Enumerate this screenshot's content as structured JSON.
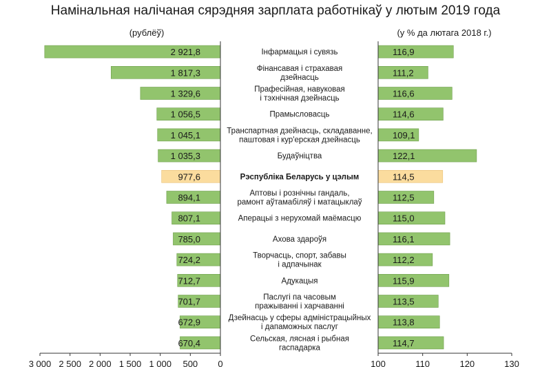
{
  "chart_data": {
    "type": "bar",
    "title": "Намінальная налічаная сярэдняя зарплата работнікаў у лютым 2019 года",
    "left_unit": "(рублёў)",
    "right_unit": "(у % да лютага 2018 г.)",
    "categories": [
      [
        "Інфармацыя і сувязь"
      ],
      [
        "Фінансавая і страхавая",
        "дзейнасць"
      ],
      [
        "Прафесійная, навуковая",
        "і тэхнічная дзейнасць"
      ],
      [
        "Прамысловасць"
      ],
      [
        "Транспартная дзейнасць, складаванне,",
        "паштовая і кур'ерская дзейнасць"
      ],
      [
        "Будаўніцтва"
      ],
      [
        "Рэспубліка Беларусь у цэлым"
      ],
      [
        "Аптовы і рознічны гандаль,",
        "рамонт аўтамабіляў і матацыклаў"
      ],
      [
        "Аперацыі з нерухомай маёмасцю"
      ],
      [
        "Ахова здароўя"
      ],
      [
        "Творчасць, спорт, забавы",
        "і адпачынак"
      ],
      [
        "Адукацыя"
      ],
      [
        "Паслугі па часовым",
        "пражыванні і харчаванні"
      ],
      [
        "Дзейнасць у сферы адміністрацыйных",
        "і дапаможных паслуг"
      ],
      [
        "Сельская, лясная і рыбная",
        "гаспадарка"
      ]
    ],
    "highlight_index": 6,
    "salary": {
      "values": [
        2921.8,
        1817.3,
        1329.6,
        1056.5,
        1045.1,
        1035.3,
        977.6,
        894.1,
        807.1,
        785.0,
        724.2,
        712.7,
        701.7,
        672.9,
        670.4
      ],
      "labels": [
        "2 921,8",
        "1 817,3",
        "1 329,6",
        "1 056,5",
        "1 045,1",
        "1 035,3",
        "977,6",
        "894,1",
        "807,1",
        "785,0",
        "724,2",
        "712,7",
        "701,7",
        "672,9",
        "670,4"
      ],
      "xlim": [
        3000,
        0
      ],
      "ticks": [
        "3 000",
        "2 500",
        "2 000",
        "1 500",
        "1 000",
        "500",
        "0"
      ],
      "tick_values": [
        3000,
        2500,
        2000,
        1500,
        1000,
        500,
        0
      ]
    },
    "index": {
      "values": [
        116.9,
        111.2,
        116.6,
        114.6,
        109.1,
        122.1,
        114.5,
        112.5,
        115.0,
        116.1,
        112.2,
        115.9,
        113.5,
        113.8,
        114.7
      ],
      "labels": [
        "116,9",
        "111,2",
        "116,6",
        "114,6",
        "109,1",
        "122,1",
        "114,5",
        "112,5",
        "115,0",
        "116,1",
        "112,2",
        "115,9",
        "113,5",
        "113,8",
        "114,7"
      ],
      "xlim": [
        100,
        130
      ],
      "ticks": [
        "100",
        "110",
        "120",
        "130"
      ],
      "tick_values": [
        100,
        110,
        120,
        130
      ]
    },
    "colors": {
      "bar": "#92c46d",
      "bar_stroke": "#6f9e4c",
      "highlight": "#fbdc9e",
      "highlight_stroke": "#e8c27a",
      "axis": "#333333"
    }
  }
}
